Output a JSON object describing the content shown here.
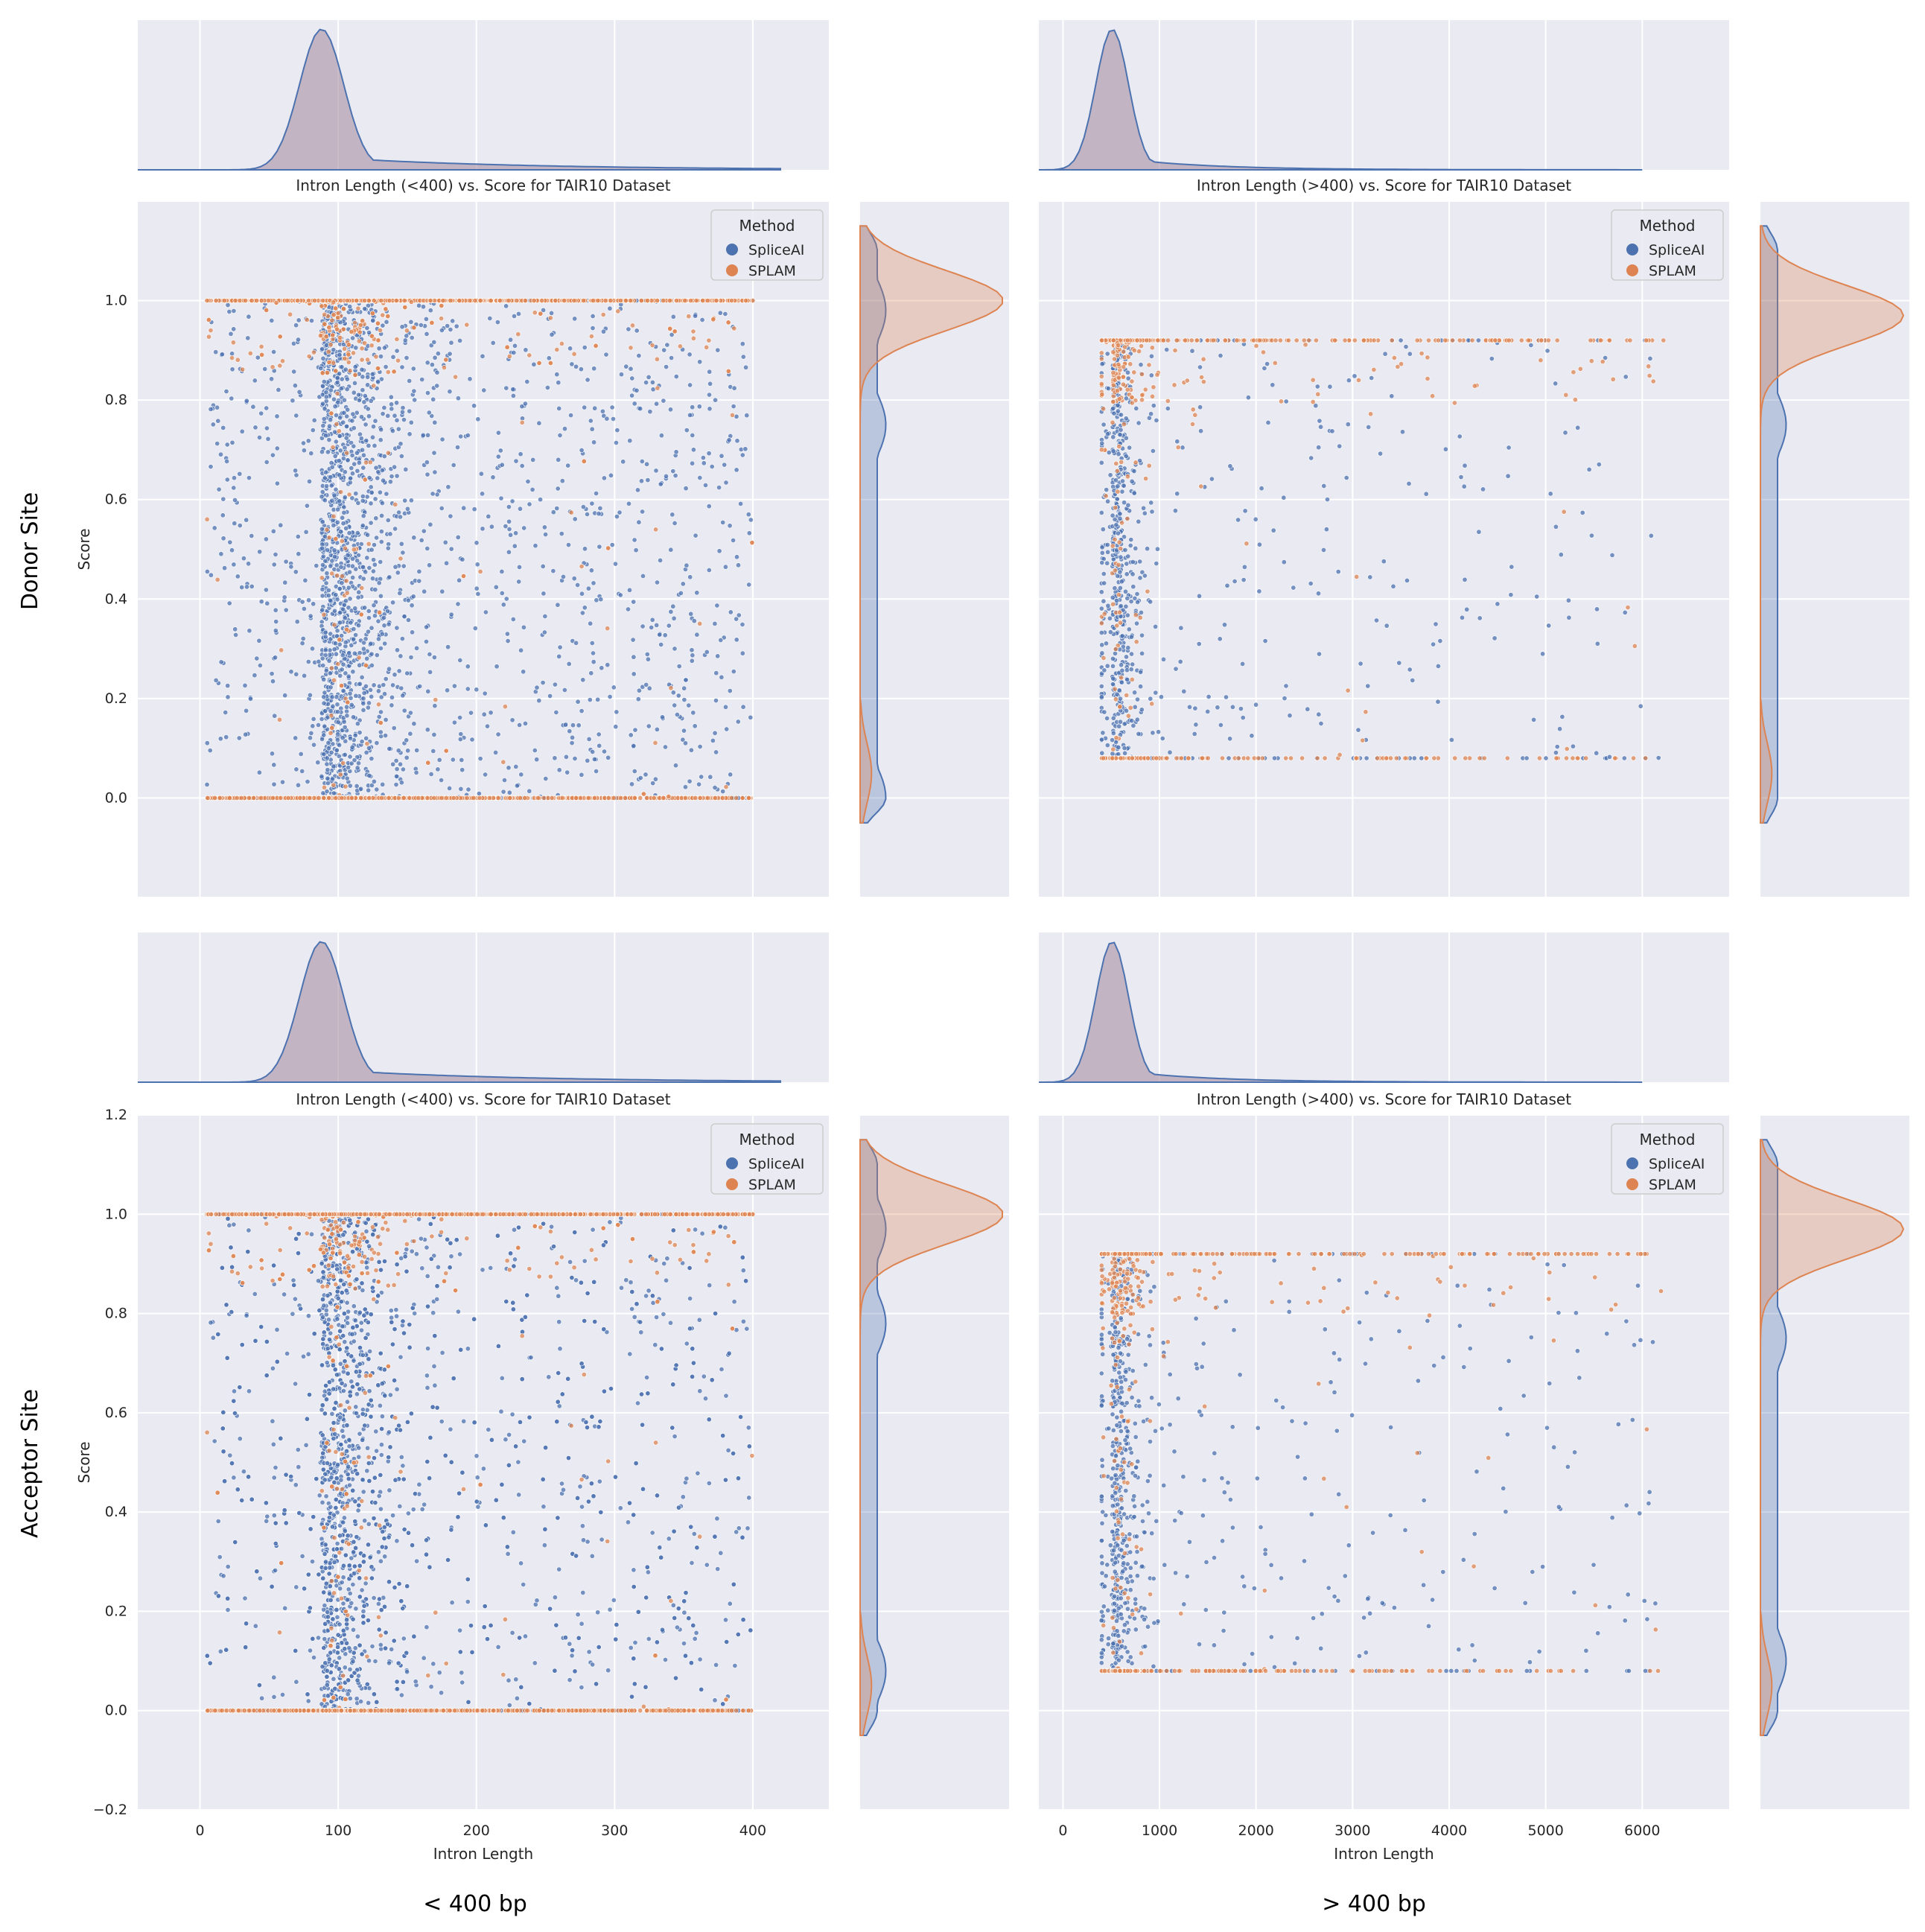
{
  "figure": {
    "row_labels": [
      "Donor Site",
      "Acceptor Site"
    ],
    "col_labels": [
      "< 400 bp",
      "> 400 bp"
    ]
  },
  "legend": {
    "title": "Method",
    "entries": [
      "SpliceAI",
      "SPLAM"
    ]
  },
  "colors": {
    "spliceai": "#4c72b0",
    "splam": "#dd8452",
    "panel_bg": "#eaeaf2",
    "grid": "#ffffff"
  },
  "chart_data": [
    {
      "type": "scatter",
      "row": "Donor Site",
      "col": "< 400 bp",
      "title": "Intron Length (<400) vs. Score for TAIR10 Dataset",
      "xlabel": "",
      "ylabel": "Score",
      "xlim": [
        -45,
        455
      ],
      "ylim": [
        -0.2,
        1.2
      ],
      "x_ticks": [
        0,
        100,
        200,
        300,
        400
      ],
      "y_ticks": [
        0.0,
        0.2,
        0.4,
        0.6,
        0.8,
        1.0
      ],
      "show_x_ticks": false,
      "show_y_ticks": true,
      "x_range": [
        5,
        400
      ],
      "length_peak": 88,
      "dense_start": 65,
      "series": [
        {
          "name": "SpliceAI",
          "top_fraction": 0.15,
          "zero_fraction": 0.15
        },
        {
          "name": "SPLAM",
          "top_fraction": 0.5,
          "zero_fraction": 0.4
        }
      ],
      "marginal_x": {
        "mode": 88,
        "max": 420
      },
      "marginal_y": {
        "SpliceAI_peaks": [
          0.98,
          0.75,
          0.0
        ],
        "SPLAM_peak": 1.0
      }
    },
    {
      "type": "scatter",
      "row": "Donor Site",
      "col": "> 400 bp",
      "title": "Intron Length (>400) vs. Score for TAIR10 Dataset",
      "xlabel": "",
      "ylabel": "",
      "xlim": [
        -250,
        6900
      ],
      "ylim": [
        -0.2,
        1.2
      ],
      "x_ticks": [
        0,
        1000,
        2000,
        3000,
        4000,
        5000,
        6000
      ],
      "y_ticks": [
        0.0,
        0.2,
        0.4,
        0.6,
        0.8,
        1.0
      ],
      "show_x_ticks": false,
      "show_y_ticks": false,
      "x_range": [
        400,
        6230
      ],
      "length_peak": 510,
      "dense_start": 400,
      "series": [
        {
          "name": "SpliceAI",
          "top_fraction": 0.1,
          "zero_fraction": 0.1
        },
        {
          "name": "SPLAM",
          "top_fraction": 0.45,
          "zero_fraction": 0.3
        }
      ],
      "marginal_x": {
        "mode": 510,
        "max": 6000
      },
      "marginal_y": {
        "SpliceAI_peaks": [
          0.75
        ],
        "SPLAM_peak": 0.97
      }
    },
    {
      "type": "scatter",
      "row": "Acceptor Site",
      "col": "< 400 bp",
      "title": "Intron Length (<400) vs. Score for TAIR10 Dataset",
      "xlabel": "Intron Length",
      "ylabel": "Score",
      "xlim": [
        -45,
        455
      ],
      "ylim": [
        -0.2,
        1.2
      ],
      "x_ticks": [
        0,
        100,
        200,
        300,
        400
      ],
      "y_ticks": [
        -0.2,
        0.0,
        0.2,
        0.4,
        0.6,
        0.8,
        1.0,
        1.2
      ],
      "show_x_ticks": true,
      "show_y_ticks": true,
      "x_range": [
        5,
        400
      ],
      "length_peak": 88,
      "dense_start": 65,
      "series": [
        {
          "name": "SpliceAI",
          "top_fraction": 0.15,
          "zero_fraction": 0.15
        },
        {
          "name": "SPLAM",
          "top_fraction": 0.5,
          "zero_fraction": 0.4
        }
      ],
      "marginal_x": {
        "mode": 88,
        "max": 420
      },
      "marginal_y": {
        "SpliceAI_peaks": [
          0.97,
          0.78,
          0.08
        ],
        "SPLAM_peak": 1.0
      }
    },
    {
      "type": "scatter",
      "row": "Acceptor Site",
      "col": "> 400 bp",
      "title": "Intron Length (>400) vs. Score for TAIR10 Dataset",
      "xlabel": "Intron Length",
      "ylabel": "",
      "xlim": [
        -250,
        6900
      ],
      "ylim": [
        -0.2,
        1.2
      ],
      "x_ticks": [
        0,
        1000,
        2000,
        3000,
        4000,
        5000,
        6000
      ],
      "y_ticks": [
        0.0,
        0.2,
        0.4,
        0.6,
        0.8,
        1.0
      ],
      "show_x_ticks": true,
      "show_y_ticks": false,
      "x_range": [
        400,
        6230
      ],
      "length_peak": 510,
      "dense_start": 400,
      "series": [
        {
          "name": "SpliceAI",
          "top_fraction": 0.1,
          "zero_fraction": 0.1
        },
        {
          "name": "SPLAM",
          "top_fraction": 0.45,
          "zero_fraction": 0.3
        }
      ],
      "marginal_x": {
        "mode": 510,
        "max": 6000
      },
      "marginal_y": {
        "SpliceAI_peaks": [
          0.75,
          0.1
        ],
        "SPLAM_peak": 0.97
      }
    }
  ]
}
